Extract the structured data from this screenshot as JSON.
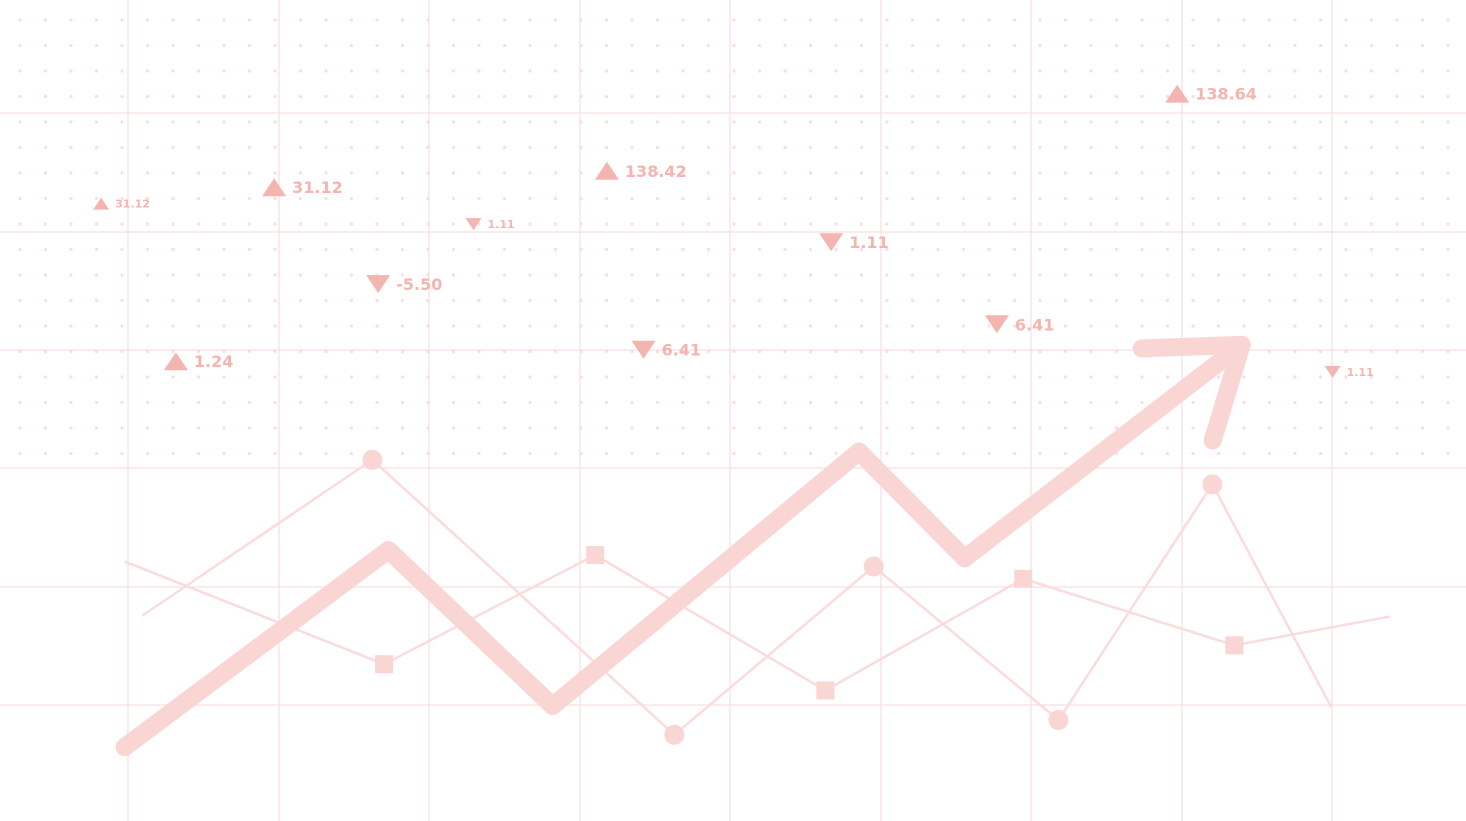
{
  "chart_data": {
    "type": "line",
    "title": "",
    "xlabel": "",
    "ylabel": "",
    "grid": true,
    "legend": "none",
    "colors": {
      "grid": "#f7d9d9",
      "dots": "#f8dede",
      "arrow": "#f9d5d3",
      "series": "#f9dcdb",
      "markers": "#f9d5d3",
      "ticker_text": "#f4b5b0"
    },
    "arrow_trend": {
      "points": [
        {
          "x": 0.085,
          "y": 0.09
        },
        {
          "x": 0.265,
          "y": 0.33
        },
        {
          "x": 0.377,
          "y": 0.14
        },
        {
          "x": 0.586,
          "y": 0.45
        },
        {
          "x": 0.658,
          "y": 0.32
        },
        {
          "x": 0.847,
          "y": 0.58
        }
      ],
      "head": "arrow"
    },
    "series": [
      {
        "marker": "circle",
        "points": [
          {
            "x": 0.097,
            "y": 0.25
          },
          {
            "x": 0.254,
            "y": 0.44,
            "marker": true
          },
          {
            "x": 0.46,
            "y": 0.105,
            "marker": true
          },
          {
            "x": 0.596,
            "y": 0.31,
            "marker": true
          },
          {
            "x": 0.722,
            "y": 0.123,
            "marker": true
          },
          {
            "x": 0.827,
            "y": 0.41,
            "marker": true
          },
          {
            "x": 0.908,
            "y": 0.139
          }
        ]
      },
      {
        "marker": "square",
        "points": [
          {
            "x": 0.085,
            "y": 0.316
          },
          {
            "x": 0.262,
            "y": 0.191,
            "marker": true
          },
          {
            "x": 0.406,
            "y": 0.324,
            "marker": true
          },
          {
            "x": 0.563,
            "y": 0.159,
            "marker": true
          },
          {
            "x": 0.698,
            "y": 0.295,
            "marker": true
          },
          {
            "x": 0.842,
            "y": 0.214,
            "marker": true
          },
          {
            "x": 0.948,
            "y": 0.249
          }
        ]
      }
    ],
    "tickers": [
      {
        "label": "31.12",
        "dir": "up",
        "size": "small",
        "x": 0.069,
        "y": 0.752
      },
      {
        "label": "31.12",
        "dir": "up",
        "size": "large",
        "x": 0.187,
        "y": 0.772
      },
      {
        "label": "1.11",
        "dir": "down",
        "size": "small",
        "x": 0.323,
        "y": 0.727
      },
      {
        "label": "138.42",
        "dir": "up",
        "size": "large",
        "x": 0.414,
        "y": 0.792
      },
      {
        "label": "-5.50",
        "dir": "down",
        "size": "large",
        "x": 0.258,
        "y": 0.654
      },
      {
        "label": "1.24",
        "dir": "up",
        "size": "large",
        "x": 0.12,
        "y": 0.56
      },
      {
        "label": "6.41",
        "dir": "down",
        "size": "large",
        "x": 0.439,
        "y": 0.574
      },
      {
        "label": "1.11",
        "dir": "down",
        "size": "large",
        "x": 0.567,
        "y": 0.705
      },
      {
        "label": "6.41",
        "dir": "down",
        "size": "large",
        "x": 0.68,
        "y": 0.605
      },
      {
        "label": "138.64",
        "dir": "up",
        "size": "large",
        "x": 0.803,
        "y": 0.886
      },
      {
        "label": "1.11",
        "dir": "down",
        "size": "small",
        "x": 0.909,
        "y": 0.547
      }
    ]
  }
}
